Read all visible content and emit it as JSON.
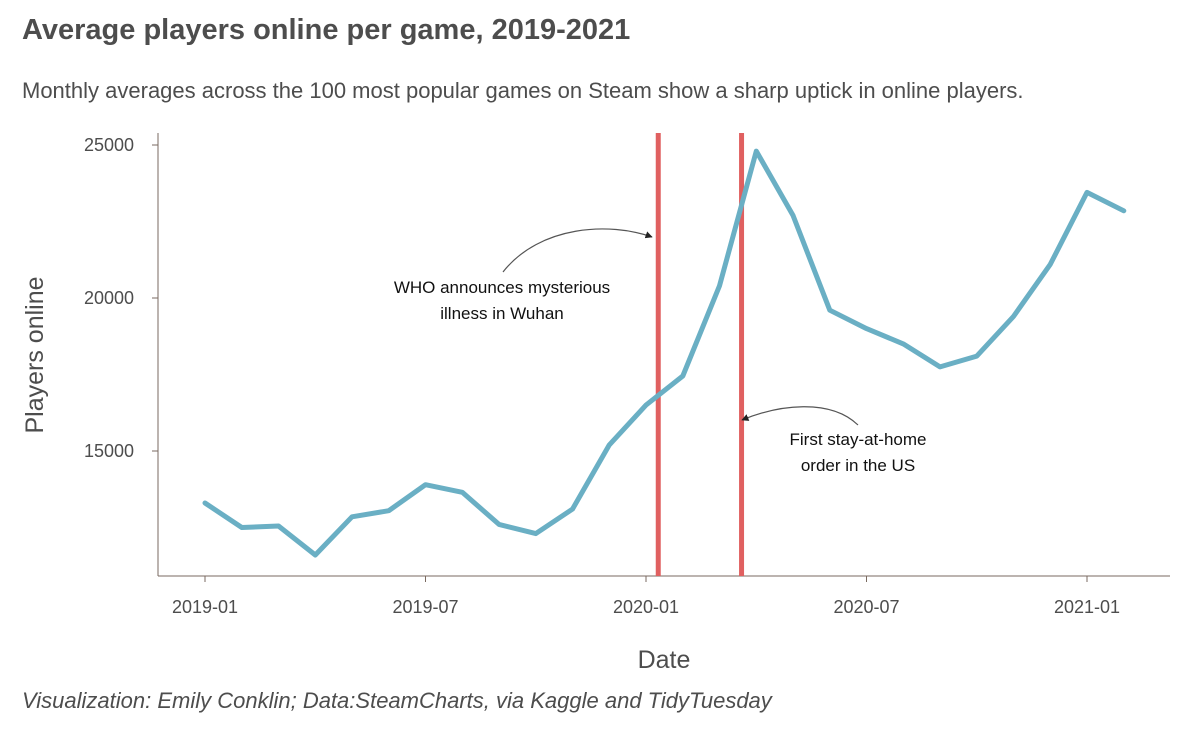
{
  "chart_data": {
    "type": "line",
    "title": "Average players online per game, 2019-2021",
    "subtitle": "Monthly averages across the 100 most popular games on Steam show a sharp uptick in online players.",
    "caption": "Visualization: Emily Conklin; Data:SteamCharts, via Kaggle and TidyTuesday",
    "xlabel": "Date",
    "ylabel": "Players online",
    "x_ticks": [
      "2019-01",
      "2019-07",
      "2020-01",
      "2020-07",
      "2021-01"
    ],
    "y_ticks": [
      15000,
      20000,
      25000
    ],
    "ylim": [
      11200,
      25400
    ],
    "xlim": [
      "2018-12",
      "2021-03"
    ],
    "series": [
      {
        "color": "#6aafc4",
        "x": [
          "2019-01",
          "2019-02",
          "2019-03",
          "2019-04",
          "2019-05",
          "2019-06",
          "2019-07",
          "2019-08",
          "2019-09",
          "2019-10",
          "2019-11",
          "2019-12",
          "2020-01",
          "2020-02",
          "2020-03",
          "2020-04",
          "2020-05",
          "2020-06",
          "2020-07",
          "2020-08",
          "2020-09",
          "2020-10",
          "2020-11",
          "2020-12",
          "2021-01",
          "2021-02"
        ],
        "values": [
          13300,
          12500,
          12550,
          11600,
          12850,
          13050,
          13900,
          13650,
          12600,
          12300,
          13100,
          15200,
          16500,
          17450,
          20400,
          24800,
          22700,
          19600,
          19000,
          18500,
          17750,
          18100,
          19400,
          21100,
          23450,
          22850
        ]
      }
    ],
    "vlines": [
      {
        "x": "2020-01-11",
        "color": "#e06060"
      },
      {
        "x": "2020-03-19",
        "color": "#e06060"
      }
    ],
    "annotations": [
      {
        "lines": [
          "WHO announces mysterious",
          "illness in Wuhan"
        ]
      },
      {
        "lines": [
          "First stay-at-home",
          "order in the US"
        ]
      }
    ],
    "grid": false
  }
}
